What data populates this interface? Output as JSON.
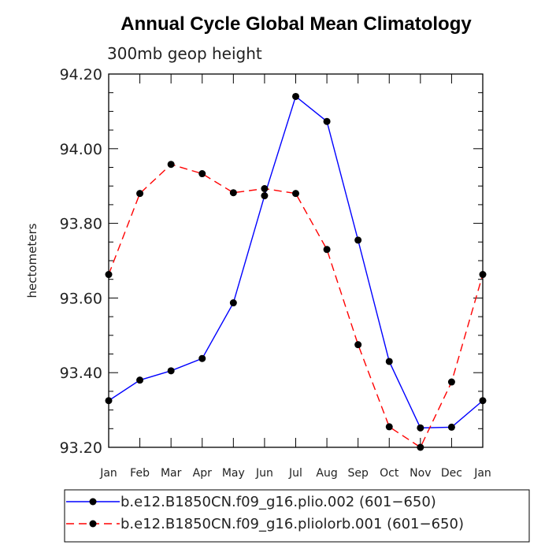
{
  "chart_data": {
    "type": "line",
    "title": "Annual Cycle Global Mean Climatology",
    "subtitle": "300mb geop height",
    "xlabel": "",
    "ylabel": "hectometers",
    "categories": [
      "Jan",
      "Feb",
      "Mar",
      "Apr",
      "May",
      "Jun",
      "Jul",
      "Aug",
      "Sep",
      "Oct",
      "Nov",
      "Dec",
      "Jan"
    ],
    "ylim": [
      93.2,
      94.2
    ],
    "yticks": [
      "93.20",
      "93.40",
      "93.60",
      "93.80",
      "94.00",
      "94.20"
    ],
    "ytick_values": [
      93.2,
      93.4,
      93.6,
      93.8,
      94.0,
      94.2
    ],
    "series": [
      {
        "name": "b.e12.B1850CN.f09_g16.plio.002 (601−650)",
        "color": "#0000ff",
        "dash": "solid",
        "values": [
          93.325,
          93.38,
          93.405,
          93.438,
          93.587,
          93.874,
          94.14,
          94.073,
          93.755,
          93.43,
          93.252,
          93.254,
          93.325
        ]
      },
      {
        "name": "b.e12.B1850CN.f09_g16.pliolorb.001 (601−650)",
        "color": "#ff0000",
        "dash": "dashed",
        "values": [
          93.663,
          93.88,
          93.958,
          93.933,
          93.882,
          93.893,
          93.88,
          93.73,
          93.475,
          93.255,
          93.2,
          93.375,
          93.663
        ]
      }
    ],
    "legend_position": "bottom",
    "grid": false
  }
}
